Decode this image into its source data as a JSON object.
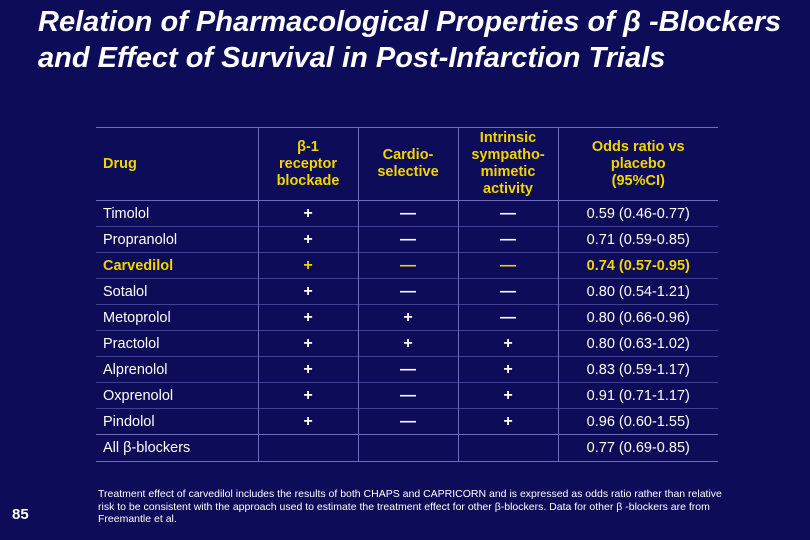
{
  "title": "Relation of Pharmacological Properties of β -Blockers and Effect of Survival in Post-Infarction Trials",
  "table": {
    "headers": [
      "Drug",
      "β-1 receptor blockade",
      "Cardio-selective",
      "Intrinsic sympatho-mimetic activity",
      "Odds ratio vs placebo (95%CI)"
    ],
    "header_lines": {
      "h2": [
        "β-1",
        "receptor",
        "blockade"
      ],
      "h3": [
        "Cardio-",
        "selective"
      ],
      "h4": [
        "Intrinsic",
        "sympatho-",
        "mimetic",
        "activity"
      ],
      "h5": [
        "Odds ratio vs",
        "placebo",
        "(95%CI)"
      ]
    },
    "rows": [
      {
        "drug": "Timolol",
        "beta1": "+",
        "cardio": "—",
        "isa": "—",
        "odds": "0.59 (0.46-0.77)"
      },
      {
        "drug": "Propranolol",
        "beta1": "+",
        "cardio": "—",
        "isa": "—",
        "odds": "0.71 (0.59-0.85)"
      },
      {
        "drug": "Carvedilol",
        "beta1": "+",
        "cardio": "—",
        "isa": "—",
        "odds": "0.74 (0.57-0.95)"
      },
      {
        "drug": "Sotalol",
        "beta1": "+",
        "cardio": "—",
        "isa": "—",
        "odds": "0.80 (0.54-1.21)"
      },
      {
        "drug": "Metoprolol",
        "beta1": "+",
        "cardio": "+",
        "isa": "—",
        "odds": "0.80 (0.66-0.96)"
      },
      {
        "drug": "Practolol",
        "beta1": "+",
        "cardio": "+",
        "isa": "+",
        "odds": "0.80 (0.63-1.02)"
      },
      {
        "drug": "Alprenolol",
        "beta1": "+",
        "cardio": "—",
        "isa": "+",
        "odds": "0.83 (0.59-1.17)"
      },
      {
        "drug": "Oxprenolol",
        "beta1": "+",
        "cardio": "—",
        "isa": "+",
        "odds": "0.91 (0.71-1.17)"
      },
      {
        "drug": "Pindolol",
        "beta1": "+",
        "cardio": "—",
        "isa": "+",
        "odds": "0.96 (0.60-1.55)"
      }
    ],
    "total": {
      "drug": "All β-blockers",
      "odds": "0.77 (0.69-0.85)"
    },
    "highlight_row": "Carvedilol"
  },
  "colors": {
    "background": "#0c0c58",
    "header_text": "#f2d400",
    "highlight": "#f2d400",
    "body_text": "#ffffff"
  },
  "page_number": "85",
  "footnote": "Treatment effect of carvedilol includes the results of both CHAPS and CAPRICORN and is expressed as odds ratio rather than relative risk to be consistent with the approach used to estimate the treatment effect for other β-blockers.  Data for other β -blockers are from Freemantle et al."
}
